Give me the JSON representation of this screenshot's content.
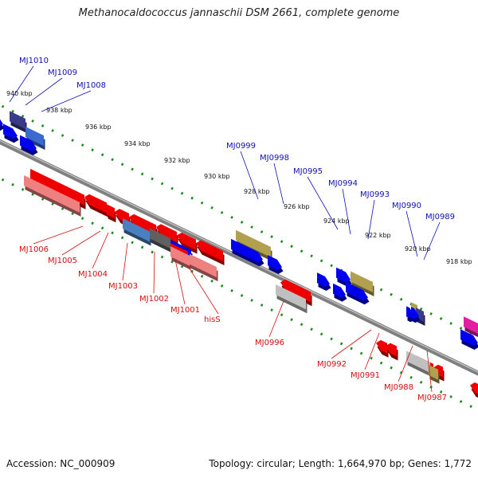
{
  "title": "Methanocaldococcus jannaschii DSM 2661, complete genome",
  "footer": {
    "accession": "Accession: NC_000909",
    "summary": "Topology: circular; Length: 1,664,970 bp; Genes: 1,772"
  },
  "colors": {
    "forward_gene": "#0000ee",
    "reverse_gene": "#ee0000",
    "backbone": "#808080",
    "tick": "#1a8a1a",
    "label_forward": "#1010b0",
    "label_reverse": "#d01010"
  },
  "kbp_labels": [
    "940 kbp",
    "938 kbp",
    "936 kbp",
    "934 kbp",
    "932 kbp",
    "930 kbp",
    "928 kbp",
    "926 kbp",
    "924 kbp",
    "922 kbp",
    "920 kbp",
    "918 kbp"
  ],
  "forward_labels": [
    "MJ1010",
    "MJ1009",
    "MJ1008",
    "MJ0999",
    "MJ0998",
    "MJ0995",
    "MJ0994",
    "MJ0993",
    "MJ0990",
    "MJ0989"
  ],
  "reverse_labels": [
    "MJ1006",
    "MJ1005",
    "MJ1004",
    "MJ1003",
    "MJ1002",
    "MJ1001",
    "hisS",
    "MJ0996",
    "MJ0992",
    "MJ0991",
    "MJ0988",
    "MJ0987"
  ]
}
